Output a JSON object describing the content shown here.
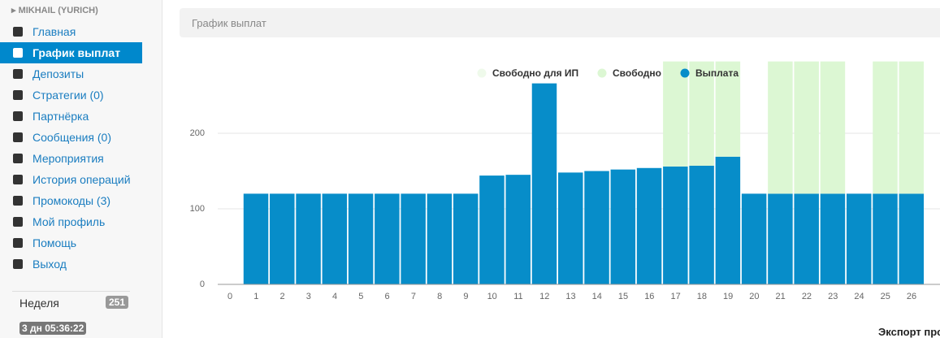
{
  "sidebar": {
    "user": "MIKHAIL (YURICH)",
    "menu": [
      "Главная",
      "График выплат",
      "Депозиты",
      "Стратегии (0)",
      "Партнёрка",
      "Сообщения (0)",
      "Мероприятия",
      "История операций",
      "Промокоды (3)",
      "Мой профиль",
      "Помощь",
      "Выход"
    ],
    "week_label": "Неделя",
    "week_badge": "251",
    "timer": "3 дн 05:36:22"
  },
  "header": {
    "title": "График выплат"
  },
  "export_label": "Экспорт про",
  "chart_data": {
    "type": "bar",
    "stacked": true,
    "categories": [
      "0",
      "1",
      "2",
      "3",
      "4",
      "5",
      "6",
      "7",
      "8",
      "9",
      "10",
      "11",
      "12",
      "13",
      "14",
      "15",
      "16",
      "17",
      "18",
      "19",
      "20",
      "21",
      "22",
      "23",
      "24",
      "25",
      "26"
    ],
    "series": [
      {
        "name": "Свободно для ИП",
        "color": "#effaeb",
        "values": [
          null,
          null,
          null,
          null,
          null,
          null,
          null,
          null,
          null,
          null,
          null,
          null,
          null,
          null,
          null,
          null,
          null,
          null,
          null,
          null,
          null,
          null,
          null,
          null,
          null,
          null,
          null
        ]
      },
      {
        "name": "Свободно",
        "color": "#dcf7d3",
        "values": [
          null,
          null,
          null,
          null,
          null,
          null,
          null,
          null,
          null,
          null,
          null,
          null,
          null,
          null,
          null,
          null,
          null,
          139,
          138,
          126,
          null,
          175,
          175,
          175,
          null,
          175,
          175
        ]
      },
      {
        "name": "Выплата",
        "color": "#078dc9",
        "values": [
          null,
          120,
          120,
          120,
          120,
          120,
          120,
          120,
          120,
          120,
          144,
          145,
          266,
          148,
          150,
          152,
          154,
          156,
          157,
          169,
          120,
          120,
          120,
          120,
          120,
          120,
          120
        ]
      }
    ],
    "ylim": [
      0,
      300
    ],
    "yticks": [
      0,
      100,
      200
    ],
    "grid": true,
    "legend": "top"
  }
}
